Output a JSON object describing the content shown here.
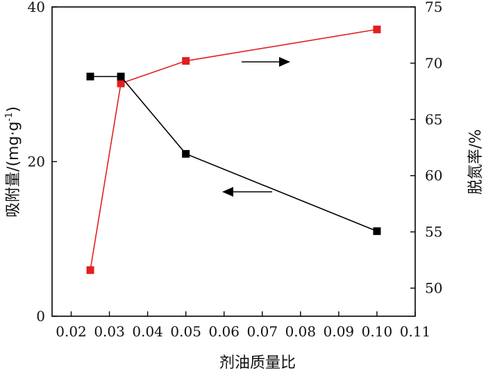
{
  "chart_data": {
    "type": "line",
    "xlabel": "剂油质量比",
    "ylabel_left": "吸附量/(mg·g⁻¹)",
    "ylabel_left_main": "吸附量/(mg",
    "ylabel_left_dot": "·",
    "ylabel_left_g": "g",
    "ylabel_left_exp": "-1",
    "ylabel_left_close": ")",
    "ylabel_right": "脱氮率/%",
    "xlim": [
      0.015,
      0.11
    ],
    "ylim_left": [
      0,
      40
    ],
    "ylim_right": [
      47.5,
      75
    ],
    "x_ticks": [
      0.02,
      0.03,
      0.04,
      0.05,
      0.06,
      0.07,
      0.08,
      0.09,
      0.1,
      0.11
    ],
    "x_tick_labels": [
      "0.02",
      "0.03",
      "0.04",
      "0.05",
      "0.06",
      "0.07",
      "0.08",
      "0.09",
      "0.10",
      "0.11"
    ],
    "y_left_ticks": [
      0,
      20,
      40
    ],
    "y_left_tick_labels": [
      "0",
      "20",
      "40"
    ],
    "y_right_ticks": [
      50,
      55,
      60,
      65,
      70,
      75
    ],
    "y_right_tick_labels": [
      "50",
      "55",
      "60",
      "65",
      "70",
      "75"
    ],
    "series": [
      {
        "axis": "left",
        "color": "#000000",
        "x": [
          0.025,
          0.033,
          0.05,
          0.1
        ],
        "y": [
          31.0,
          31.0,
          21.0,
          11.0
        ]
      },
      {
        "axis": "right",
        "color": "#e0201f",
        "x": [
          0.025,
          0.033,
          0.05,
          0.1
        ],
        "y": [
          51.6,
          68.2,
          70.2,
          73.0
        ]
      }
    ],
    "annotations": [
      {
        "type": "arrow",
        "direction": "right",
        "series": 1
      },
      {
        "type": "arrow",
        "direction": "left",
        "series": 0
      }
    ],
    "grid": false,
    "legend": "none"
  }
}
